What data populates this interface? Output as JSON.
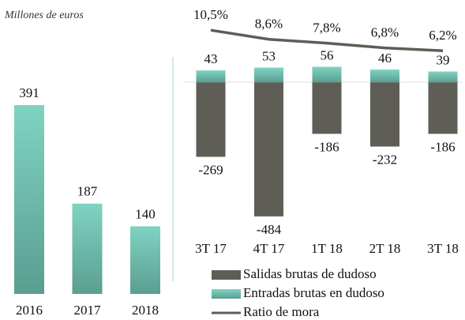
{
  "chart_data": [
    {
      "type": "bar",
      "subtitle": "Millones de euros",
      "categories": [
        "2016",
        "2017",
        "2018"
      ],
      "values": [
        391,
        187,
        140
      ],
      "color": "#74c7b7",
      "ylim": [
        0,
        450
      ]
    },
    {
      "type": "combo",
      "categories": [
        "3T 17",
        "4T 17",
        "1T 18",
        "2T 18",
        "3T 18"
      ],
      "series": [
        {
          "name": "Salidas brutas de dudoso",
          "color": "#5e5e56",
          "values": [
            -269,
            -484,
            -186,
            -232,
            -186
          ]
        },
        {
          "name": "Entradas brutas en dudoso",
          "color": "#74c7b7",
          "values": [
            43,
            53,
            56,
            46,
            39
          ]
        },
        {
          "name": "Ratio de mora",
          "type": "line",
          "axis": "y2",
          "color": "#5e5e56",
          "values": [
            10.5,
            8.6,
            7.8,
            6.8,
            6.2
          ],
          "value_labels": [
            "10,5%",
            "8,6%",
            "7,8%",
            "6,8%",
            "6,2%"
          ]
        }
      ],
      "ylim": [
        -530,
        240
      ],
      "y2lim": [
        -31,
        13.5
      ],
      "legend": "bottom"
    }
  ]
}
